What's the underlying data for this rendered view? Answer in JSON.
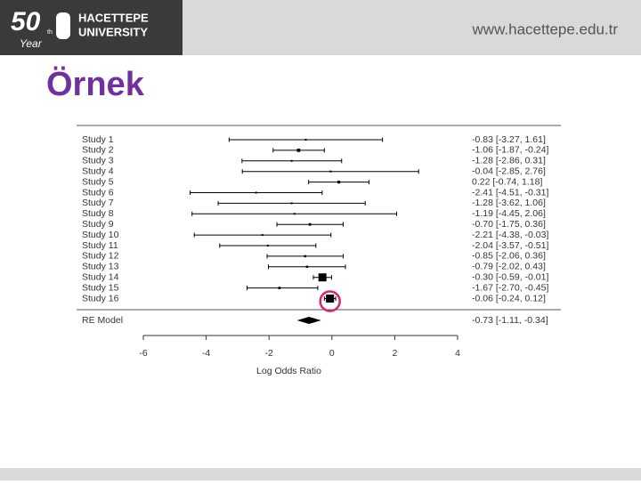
{
  "header": {
    "anniversary": "50",
    "anniversary_suffix": "th",
    "anniversary_label": "Year",
    "university_line1": "HACETTEPE",
    "university_line2": "UNIVERSITY",
    "url": "www.hacettepe.edu.tr"
  },
  "slide": {
    "title": "Örnek"
  },
  "chart_data": {
    "type": "forest",
    "categories": [
      "Study 1",
      "Study 2",
      "Study 3",
      "Study 4",
      "Study 5",
      "Study 6",
      "Study 7",
      "Study 8",
      "Study 9",
      "Study 10",
      "Study 11",
      "Study 12",
      "Study 13",
      "Study 14",
      "Study 15",
      "Study 16"
    ],
    "estimates": [
      -0.83,
      -1.06,
      -1.28,
      -0.04,
      0.22,
      -2.41,
      -1.28,
      -1.19,
      -0.7,
      -2.21,
      -2.04,
      -0.85,
      -0.79,
      -0.3,
      -1.67,
      -0.06
    ],
    "lower": [
      -3.27,
      -1.87,
      -2.86,
      -2.85,
      -0.74,
      -4.51,
      -3.62,
      -4.45,
      -1.75,
      -4.38,
      -3.57,
      -2.06,
      -2.02,
      -0.59,
      -2.7,
      -0.24
    ],
    "upper": [
      1.61,
      -0.24,
      0.31,
      2.76,
      1.18,
      -0.31,
      1.06,
      2.06,
      0.36,
      -0.03,
      -0.51,
      0.36,
      0.43,
      -0.01,
      -0.45,
      0.12
    ],
    "value_labels": [
      "-0.83 [-3.27, 1.61]",
      "-1.06 [-1.87, -0.24]",
      "-1.28 [-2.86, 0.31]",
      "-0.04 [-2.85, 2.76]",
      "0.22 [-0.74, 1.18]",
      "-2.41 [-4.51, -0.31]",
      "-1.28 [-3.62, 1.06]",
      "-1.19 [-4.45, 2.06]",
      "-0.70 [-1.75, 0.36]",
      "-2.21 [-4.38, -0.03]",
      "-2.04 [-3.57, -0.51]",
      "-0.85 [-2.06, 0.36]",
      "-0.79 [-2.02, 0.43]",
      "-0.30 [-0.59, -0.01]",
      "-1.67 [-2.70, -0.45]",
      "-0.06 [-0.24, 0.12]"
    ],
    "summary": {
      "name": "RE Model",
      "estimate": -0.73,
      "lower": -1.11,
      "upper": -0.34,
      "value_label": "-0.73 [-1.11, -0.34]"
    },
    "xlabel": "Log Odds Ratio",
    "xlim": [
      -6,
      4
    ],
    "xticks": [
      -6,
      -4,
      -2,
      0,
      2,
      4
    ],
    "color": "#000000",
    "highlight_color": "#d6246e"
  }
}
